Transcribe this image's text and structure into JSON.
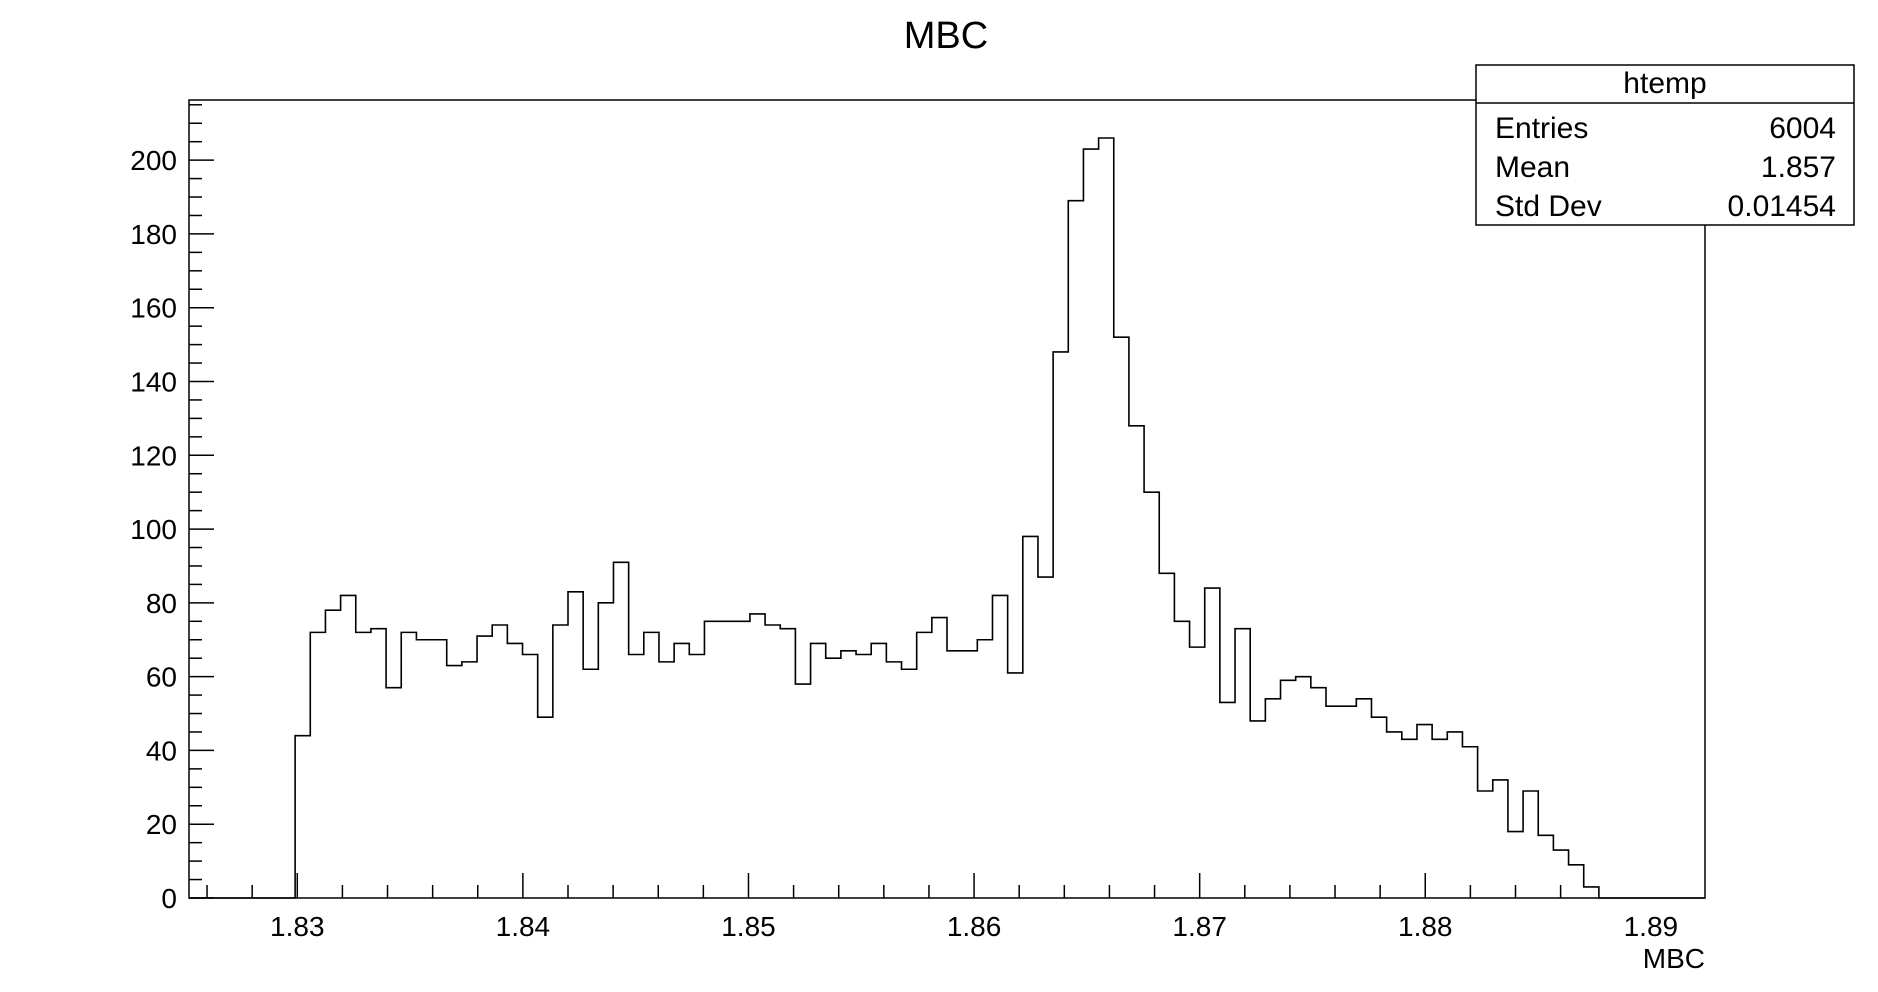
{
  "chart_data": {
    "type": "histogram",
    "title": "MBC",
    "xlabel": "MBC",
    "ylabel": "",
    "xlim": [
      1.8252,
      1.8924
    ],
    "ylim": [
      0,
      216.3
    ],
    "x_tick_labels": [
      "1.83",
      "1.84",
      "1.85",
      "1.86",
      "1.87",
      "1.88",
      "1.89"
    ],
    "x_tick_values": [
      1.83,
      1.84,
      1.85,
      1.86,
      1.87,
      1.88,
      1.89
    ],
    "y_tick_labels": [
      "0",
      "20",
      "40",
      "60",
      "80",
      "100",
      "120",
      "140",
      "160",
      "180",
      "200"
    ],
    "y_tick_values": [
      0,
      20,
      40,
      60,
      80,
      100,
      120,
      140,
      160,
      180,
      200
    ],
    "bin_width": 0.000672,
    "bin_start": 1.8252,
    "counts": [
      0,
      0,
      0,
      0,
      0,
      0,
      0,
      44,
      72,
      78,
      82,
      72,
      73,
      57,
      72,
      70,
      70,
      63,
      64,
      71,
      74,
      69,
      66,
      49,
      74,
      83,
      62,
      80,
      91,
      66,
      72,
      64,
      69,
      66,
      75,
      75,
      75,
      77,
      74,
      73,
      58,
      69,
      65,
      67,
      66,
      69,
      64,
      62,
      72,
      76,
      67,
      67,
      70,
      82,
      61,
      98,
      87,
      148,
      189,
      203,
      206,
      152,
      128,
      110,
      88,
      75,
      68,
      84,
      53,
      73,
      48,
      54,
      59,
      60,
      57,
      52,
      52,
      54,
      49,
      45,
      43,
      47,
      43,
      45,
      41,
      29,
      32,
      18,
      29,
      17,
      13,
      9,
      3,
      0,
      0,
      0,
      0,
      0,
      0,
      0
    ],
    "stats_box": {
      "name": "htemp",
      "rows": [
        {
          "label": "Entries",
          "value": "6004"
        },
        {
          "label": "Mean",
          "value": "1.857"
        },
        {
          "label": "Std Dev",
          "value": "0.01454"
        }
      ]
    }
  }
}
